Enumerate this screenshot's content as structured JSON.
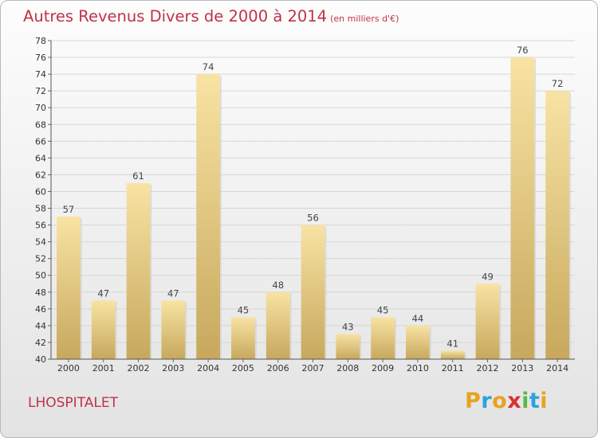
{
  "header": {
    "title": "Autres Revenus Divers de 2000 à 2014",
    "subtitle": "(en milliers d'€)"
  },
  "footer": {
    "place": "LHOSPITALET"
  },
  "logo": {
    "letters": [
      "P",
      "r",
      "o",
      "x",
      "i",
      "t",
      "i"
    ],
    "colors": [
      "#e8a31f",
      "#2aa3dd",
      "#e8a31f",
      "#d9322f",
      "#58b947",
      "#2aa3dd",
      "#e8a31f"
    ]
  },
  "colors": {
    "title": "#c0314a",
    "bar_light": "#f8e3a3",
    "bar_dark": "#c7a85d"
  },
  "chart_data": {
    "type": "bar",
    "title": "Autres Revenus Divers de 2000 à 2014",
    "subtitle": "(en milliers d'€)",
    "categories": [
      "2000",
      "2001",
      "2002",
      "2003",
      "2004",
      "2005",
      "2006",
      "2007",
      "2008",
      "2009",
      "2010",
      "2011",
      "2012",
      "2013",
      "2014"
    ],
    "values": [
      57,
      47,
      61,
      47,
      74,
      45,
      48,
      56,
      43,
      45,
      44,
      41,
      49,
      76,
      72
    ],
    "ylim": [
      40,
      78
    ],
    "yticks": [
      40,
      42,
      44,
      46,
      48,
      50,
      52,
      54,
      56,
      58,
      60,
      62,
      64,
      66,
      68,
      70,
      72,
      74,
      76,
      78
    ],
    "grid": true
  }
}
